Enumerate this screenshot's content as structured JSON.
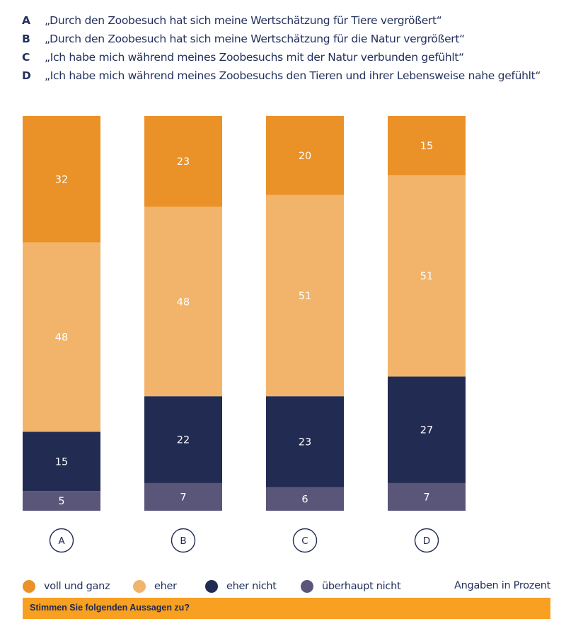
{
  "statements": [
    {
      "letter": "A",
      "text": "„Durch den Zoobesuch hat sich meine Wertschätzung für Tiere vergrößert“"
    },
    {
      "letter": "B",
      "text": "„Durch den Zoobesuch hat sich meine Wertschätzung für die Natur vergrößert“"
    },
    {
      "letter": "C",
      "text": "„Ich habe mich während meines Zoobesuchs mit der Natur verbunden gefühlt“"
    },
    {
      "letter": "D",
      "text": "„Ich habe mich während meines Zoobesuchs den Tieren und ihrer Lebensweise nahe gefühlt“"
    }
  ],
  "chart_data": {
    "type": "bar",
    "stacked": true,
    "orientation": "vertical",
    "categories": [
      "A",
      "B",
      "C",
      "D"
    ],
    "series": [
      {
        "name": "überhaupt nicht",
        "color": "#5a567a",
        "values": [
          5,
          7,
          6,
          7
        ]
      },
      {
        "name": "eher nicht",
        "color": "#222b52",
        "values": [
          15,
          22,
          23,
          27
        ]
      },
      {
        "name": "eher",
        "color": "#f2b46b",
        "values": [
          48,
          48,
          51,
          51
        ]
      },
      {
        "name": "voll und ganz",
        "color": "#ea9128",
        "values": [
          32,
          23,
          20,
          15
        ]
      }
    ],
    "ylim": [
      0,
      100
    ],
    "grid": false,
    "legend_position": "bottom"
  },
  "legend": [
    {
      "label": "voll und ganz",
      "color": "#ea9128"
    },
    {
      "label": "eher",
      "color": "#f2b46b"
    },
    {
      "label": "eher nicht",
      "color": "#222b52"
    },
    {
      "label": "überhaupt nicht",
      "color": "#5a567a"
    }
  ],
  "legend_note": "Angaben in Prozent",
  "question": "Stimmen Sie folgenden Aussagen zu?"
}
